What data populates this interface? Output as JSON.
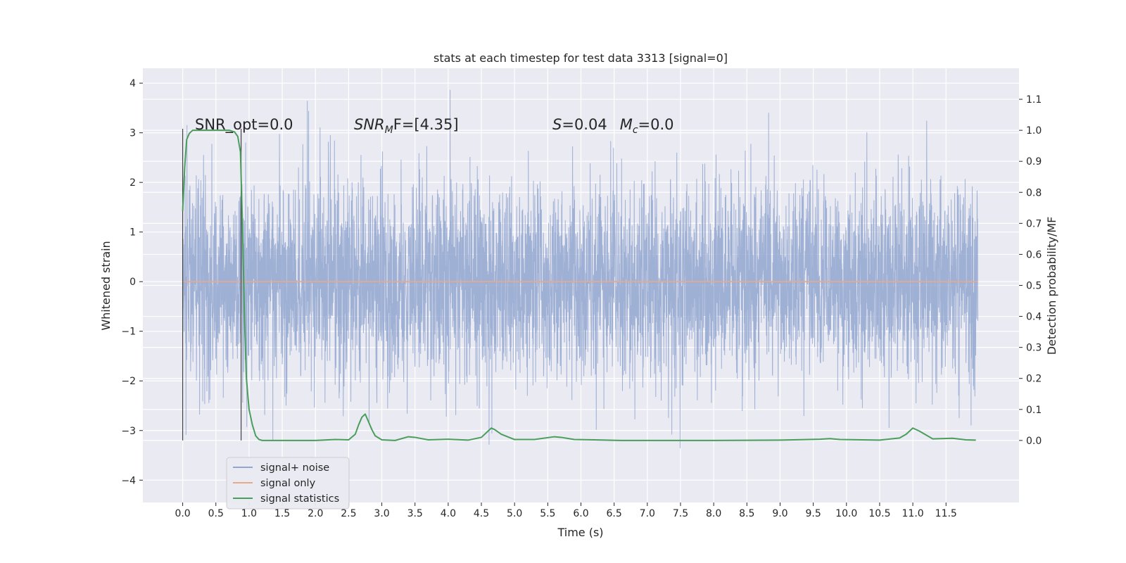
{
  "chart_data": {
    "type": "line",
    "title": "stats at each timestep for test data 3313 [signal=0]",
    "xlabel": "Time (s)",
    "ylabel": "Whitened strain",
    "ylabel_right": "Detection probability/MF",
    "xlim": [
      -0.6,
      12.6
    ],
    "ylim": [
      -4.45,
      4.3
    ],
    "ylim_right": [
      -0.2,
      1.2
    ],
    "x_ticks": [
      "0.0",
      "0.5",
      "1.0",
      "1.5",
      "2.0",
      "2.5",
      "3.0",
      "3.5",
      "4.0",
      "4.5",
      "5.0",
      "5.5",
      "6.0",
      "6.5",
      "7.0",
      "7.5",
      "8.0",
      "8.5",
      "9.0",
      "9.5",
      "10.0",
      "10.5",
      "11.0",
      "11.5"
    ],
    "y_ticks_left": [
      "4",
      "3",
      "2",
      "1",
      "0",
      "−1",
      "−2",
      "−3",
      "−4"
    ],
    "y_ticks_right": [
      "1.1",
      "1.0",
      "0.9",
      "0.8",
      "0.7",
      "0.6",
      "0.5",
      "0.4",
      "0.3",
      "0.2",
      "0.1",
      "0.0"
    ],
    "grid": true,
    "legend_position": "lower-left",
    "annotations": {
      "snr_opt": "SNR_opt=0.0",
      "snr_mf_prefix": "SNR",
      "snr_mf_sub": "M",
      "snr_mf_rest": "F=[4.35]",
      "s_label": "S",
      "s_value": "=0.04",
      "mc_label": "M",
      "mc_sub": "c",
      "mc_value": "=0.0"
    },
    "vlines_x": [
      0.0,
      0.88
    ],
    "series": [
      {
        "name": "signal+ noise",
        "color": "#92a6d0",
        "axis": "left",
        "t_range": [
          0.0,
          11.98
        ],
        "noise_sigma": 1.0,
        "approx_extremes": [
          3.93,
          -4.07
        ]
      },
      {
        "name": "signal only",
        "color": "#e8a98b",
        "axis": "left",
        "x": [
          0.0,
          11.98
        ],
        "y": [
          0.0,
          0.0
        ]
      },
      {
        "name": "signal statistics",
        "color": "#4a9e5c",
        "axis": "right",
        "x": [
          0.0,
          0.03,
          0.06,
          0.1,
          0.15,
          0.2,
          0.3,
          0.4,
          0.5,
          0.6,
          0.7,
          0.78,
          0.83,
          0.87,
          0.9,
          0.93,
          0.96,
          1.0,
          1.05,
          1.1,
          1.15,
          1.2,
          1.3,
          1.5,
          2.0,
          2.3,
          2.5,
          2.6,
          2.65,
          2.7,
          2.75,
          2.8,
          2.85,
          2.9,
          3.0,
          3.2,
          3.4,
          3.5,
          3.7,
          4.0,
          4.3,
          4.5,
          4.6,
          4.65,
          4.7,
          4.8,
          5.0,
          5.3,
          5.6,
          5.7,
          5.9,
          6.2,
          6.6,
          7.0,
          8.0,
          9.0,
          9.6,
          9.75,
          9.9,
          10.5,
          10.8,
          10.9,
          11.0,
          11.1,
          11.3,
          11.6,
          11.8,
          11.95
        ],
        "y": [
          0.74,
          0.88,
          0.97,
          0.99,
          1.0,
          1.0,
          1.0,
          1.0,
          1.0,
          1.0,
          1.0,
          0.995,
          0.98,
          0.93,
          0.7,
          0.4,
          0.2,
          0.1,
          0.05,
          0.015,
          0.003,
          0.0,
          0.0,
          0.0,
          0.0,
          0.003,
          0.002,
          0.02,
          0.05,
          0.075,
          0.085,
          0.06,
          0.035,
          0.015,
          0.002,
          0.0,
          0.012,
          0.01,
          0.002,
          0.004,
          0.001,
          0.01,
          0.03,
          0.04,
          0.035,
          0.02,
          0.003,
          0.003,
          0.012,
          0.01,
          0.003,
          0.002,
          0.0,
          0.0,
          0.0,
          0.001,
          0.004,
          0.006,
          0.003,
          0.001,
          0.008,
          0.02,
          0.04,
          0.03,
          0.005,
          0.007,
          0.002,
          0.001
        ]
      }
    ]
  }
}
